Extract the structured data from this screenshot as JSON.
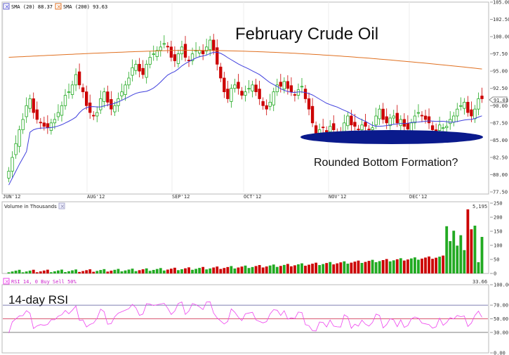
{
  "chart_data": [
    {
      "type": "candlestick",
      "title": "February Crude Oil",
      "annotation": "Rounded Bottom Formation?",
      "legend": [
        {
          "label": "SMA (20) 88.37",
          "color": "#4040dd",
          "icon": "close-x-icon"
        },
        {
          "label": "SMA (200) 93.63",
          "color": "#e07020",
          "icon": "close-x-icon"
        }
      ],
      "x_ticks": [
        "JUN'12",
        "AUG'12",
        "SEP'12",
        "OCT'12",
        "NOV'12",
        "DEC'12"
      ],
      "y_ticks": [
        "77.50",
        "80.00",
        "82.50",
        "85.00",
        "87.50",
        "90.00",
        "92.50",
        "95.00",
        "97.50",
        "100.00",
        "102.50",
        "105.00"
      ],
      "ylim": [
        77.5,
        105.0
      ],
      "last_price": "91.03",
      "up_color": "#22aa22",
      "down_color": "#cc0000",
      "sma20_color": "#4040dd",
      "sma200_color": "#e07020",
      "highlight_color": "#0a1a8c"
    },
    {
      "type": "bar",
      "title": "Volume in Thousands",
      "max_label": "5,195",
      "y_ticks": [
        "0",
        "50",
        "100",
        "150",
        "200",
        "250"
      ],
      "ylim": [
        0,
        250
      ]
    },
    {
      "type": "line",
      "legend_label": "RSI 14, 0 Buy Sell 50%",
      "label": "14-day RSI",
      "last_value": "33.66",
      "y_ticks": [
        "0.00",
        "30.00",
        "50.00",
        "70.00",
        "100.00"
      ],
      "ylim": [
        0,
        100
      ],
      "overbought": 70,
      "midline": 50,
      "oversold": 30,
      "line_color": "#ee44ee",
      "threshold_color": "#cc2244"
    }
  ]
}
